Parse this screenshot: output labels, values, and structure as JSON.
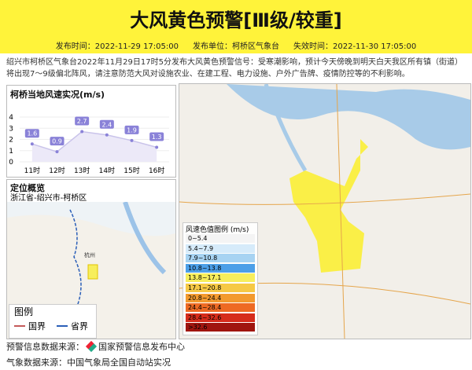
{
  "header": {
    "title": "大风黄色预警[Ⅲ级/较重]",
    "meta": [
      "发布时间：2022-11-29 17:05:00",
      "发布单位：柯桥区气象台",
      "失效时间：2022-11-30 17:05:00"
    ]
  },
  "description": "绍兴市柯桥区气象台2022年11月29日17时5分发布大风黄色预警信号：受寒潮影响，预计今天傍晚到明天白天我区所有镇（街道）将出现7～9级偏北阵风，请注意防范大风对设施农业、在建工程、电力设施、户外广告牌、疫情防控等的不利影响。",
  "wind_chart": {
    "title": "柯桥当地风速实况(m/s)",
    "categories": [
      "11时",
      "12时",
      "13时",
      "14时",
      "15时",
      "16时"
    ],
    "values": [
      1.6,
      0.9,
      2.7,
      2.4,
      1.9,
      1.3
    ],
    "ylim": [
      0,
      4
    ],
    "yticks": [
      0,
      1,
      2,
      3,
      4
    ],
    "color": "#8a82d8"
  },
  "location": {
    "title": "定位概览",
    "place": "浙江省-绍兴市-柯桥区",
    "legend_title": "图例",
    "legend_items": [
      {
        "label": "国界",
        "color": "#c45a5a"
      },
      {
        "label": "省界",
        "color": "#2b5fb8"
      }
    ]
  },
  "map": {
    "city_label": "杭州",
    "legend_title": "风速色值图例 (m/s)",
    "legend_items": [
      {
        "label": "0~5.4",
        "color": "#f4f4f4"
      },
      {
        "label": "5.4~7.9",
        "color": "#d6ebfa"
      },
      {
        "label": "7.9~10.8",
        "color": "#a7d3f2"
      },
      {
        "label": "10.8~13.8",
        "color": "#4c9fe8"
      },
      {
        "label": "13.8~17.1",
        "color": "#f7ee5c"
      },
      {
        "label": "17.1~20.8",
        "color": "#f6c945"
      },
      {
        "label": "20.8~24.4",
        "color": "#f39a2e"
      },
      {
        "label": "24.4~28.4",
        "color": "#ee6a23"
      },
      {
        "label": "28.4~32.6",
        "color": "#d62c1c"
      },
      {
        "label": ">32.6",
        "color": "#a0150f"
      }
    ]
  },
  "footer": [
    {
      "label": "预警信息数据来源：",
      "value": "国家预警信息发布中心"
    },
    {
      "label": "气象数据来源：",
      "value": "中国气象局全国自动站实况"
    }
  ]
}
